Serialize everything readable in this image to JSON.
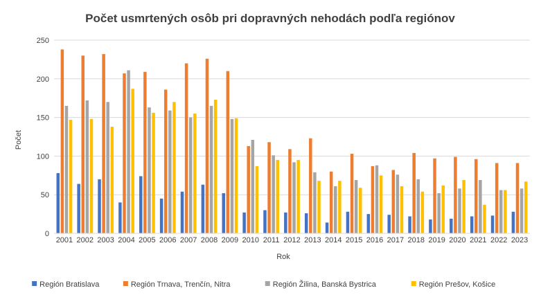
{
  "chart_data": {
    "type": "bar",
    "title": "Počet usmrtených osôb pri dopravných nehodách podľa regiónov",
    "xlabel": "Rok",
    "ylabel": "Počet",
    "ylim": [
      0,
      250
    ],
    "yticks": [
      0,
      50,
      100,
      150,
      200,
      250
    ],
    "grid": true,
    "legend_position": "bottom",
    "categories": [
      "2001",
      "2002",
      "2003",
      "2004",
      "2005",
      "2006",
      "2007",
      "2008",
      "2009",
      "2010",
      "2011",
      "2012",
      "2013",
      "2014",
      "2015",
      "2016",
      "2017",
      "2018",
      "2019",
      "2020",
      "2021",
      "2022",
      "2023"
    ],
    "series": [
      {
        "name": "Región Bratislava",
        "color": "#4472C4",
        "values": [
          78,
          64,
          70,
          40,
          74,
          45,
          54,
          63,
          52,
          27,
          30,
          27,
          26,
          14,
          28,
          25,
          24,
          22,
          18,
          19,
          22,
          23,
          28
        ]
      },
      {
        "name": "Región Trnava, Trenčín, Nitra",
        "color": "#ED7D31",
        "values": [
          238,
          230,
          232,
          207,
          209,
          186,
          220,
          226,
          210,
          113,
          118,
          109,
          123,
          80,
          103,
          87,
          82,
          104,
          97,
          99,
          96,
          91,
          91
        ]
      },
      {
        "name": "Región Žilina, Banská Bystrica",
        "color": "#A5A5A5",
        "values": [
          165,
          172,
          170,
          211,
          163,
          159,
          150,
          165,
          148,
          121,
          101,
          92,
          79,
          61,
          69,
          88,
          76,
          70,
          52,
          58,
          69,
          56,
          58
        ]
      },
      {
        "name": "Región Prešov, Košice",
        "color": "#FFC000",
        "values": [
          147,
          148,
          138,
          187,
          156,
          170,
          155,
          173,
          149,
          87,
          95,
          95,
          68,
          68,
          59,
          75,
          61,
          54,
          62,
          69,
          37,
          56,
          67
        ]
      }
    ]
  }
}
